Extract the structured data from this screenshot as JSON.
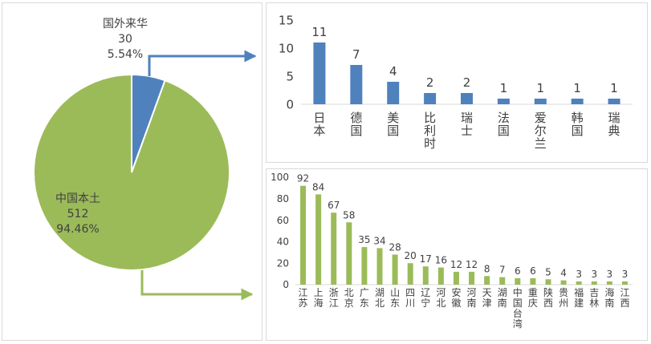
{
  "chart_data": [
    {
      "type": "pie",
      "slices": [
        {
          "label": "国外来华",
          "count": "30",
          "percent": "5.54%",
          "value": 30,
          "color": "#4f81bd"
        },
        {
          "label": "中国本土",
          "count": "512",
          "percent": "94.46%",
          "value": 512,
          "color": "#9bbb59"
        }
      ]
    },
    {
      "type": "bar",
      "color": "#4f81bd",
      "ylim": [
        0,
        15
      ],
      "yticks": [
        "0",
        "5",
        "10",
        "15"
      ],
      "categories": [
        "日本",
        "德国",
        "美国",
        "比利时",
        "瑞士",
        "法国",
        "爱尔兰",
        "韩国",
        "瑞典"
      ],
      "values": [
        11,
        7,
        4,
        2,
        2,
        1,
        1,
        1,
        1
      ],
      "value_labels": [
        "11",
        "7",
        "4",
        "2",
        "2",
        "1",
        "1",
        "1",
        "1"
      ]
    },
    {
      "type": "bar",
      "color": "#9bbb59",
      "ylim": [
        0,
        100
      ],
      "yticks": [
        "0",
        "20",
        "40",
        "60",
        "80",
        "100"
      ],
      "categories": [
        "江苏",
        "上海",
        "浙江",
        "北京",
        "广东",
        "湖北",
        "山东",
        "四川",
        "辽宁",
        "河北",
        "安徽",
        "河南",
        "天津",
        "湖南",
        "中国台湾",
        "重庆",
        "陕西",
        "贵州",
        "福建",
        "吉林",
        "海南",
        "江西"
      ],
      "values": [
        92,
        84,
        67,
        58,
        35,
        34,
        28,
        20,
        17,
        16,
        12,
        12,
        8,
        7,
        6,
        6,
        5,
        4,
        3,
        3,
        3,
        3
      ],
      "value_labels": [
        "92",
        "84",
        "67",
        "58",
        "35",
        "34",
        "28",
        "20",
        "17",
        "16",
        "12",
        "12",
        "8",
        "7",
        "6",
        "6",
        "5",
        "4",
        "3",
        "3",
        "3",
        "3"
      ]
    }
  ]
}
